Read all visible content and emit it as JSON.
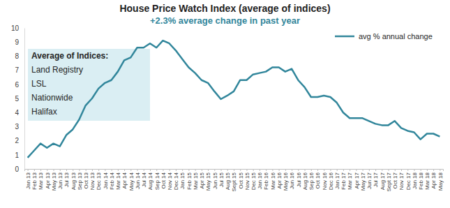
{
  "chart_data": {
    "type": "line",
    "title": "House Price Watch Index (average of indices)",
    "subtitle": "+2.3% average change in past year",
    "categories": [
      "Jan 13",
      "Feb 13",
      "Mar 13",
      "Apr 13",
      "May 13",
      "Jun 13",
      "Jul 13",
      "Aug 13",
      "Sep 13",
      "Oct 13",
      "Nov 13",
      "Dec 13",
      "Jan 14",
      "Feb 14",
      "Mar 14",
      "Apr 14",
      "May 14",
      "Jun 14",
      "Jul 14",
      "Aug 14",
      "Sep 14",
      "Oct 14",
      "Nov 14",
      "Dec 14",
      "Jan 15",
      "Feb 15",
      "Mar 15",
      "Apr 15",
      "May 15",
      "Jun 15",
      "Jul 15",
      "Aug 15",
      "Sept 15",
      "Oct 15",
      "Nov 15",
      "Dec 15",
      "Jan 16",
      "Feb 16",
      "Mar 16",
      "Apr 16",
      "May 16",
      "Jun 16",
      "Jul 16",
      "Aug 16",
      "Sep 16",
      "Oct 16",
      "Nov 16",
      "Dec 16",
      "Jan 17",
      "Feb 17",
      "Mar 17",
      "Apr 17",
      "May 17",
      "Jun 17",
      "Jul 17",
      "Aug 17",
      "Sept 17",
      "Oct 17",
      "Nov 17",
      "Dec 17",
      "Jan 18",
      "Feb 18",
      "Mar 18",
      "Apr 18",
      "May 18"
    ],
    "series": [
      {
        "name": "avg % annual change",
        "color": "#31869b",
        "values": [
          0.8,
          1.3,
          1.8,
          1.5,
          1.8,
          1.6,
          2.4,
          2.8,
          3.5,
          4.5,
          5.0,
          5.7,
          6.1,
          6.3,
          6.9,
          7.7,
          7.9,
          8.6,
          8.6,
          8.9,
          8.6,
          9.1,
          8.9,
          8.4,
          7.8,
          7.2,
          6.8,
          6.3,
          6.1,
          5.5,
          4.95,
          5.2,
          5.5,
          6.3,
          6.3,
          6.7,
          6.8,
          6.9,
          7.2,
          7.2,
          6.9,
          7.1,
          6.3,
          5.8,
          5.1,
          5.1,
          5.2,
          5.1,
          4.7,
          4.0,
          3.6,
          3.6,
          3.6,
          3.4,
          3.2,
          3.1,
          3.1,
          3.4,
          2.9,
          2.7,
          2.6,
          2.1,
          2.5,
          2.5,
          2.3
        ]
      }
    ],
    "ylim": [
      0,
      10
    ],
    "yticks": [
      0,
      1,
      2,
      3,
      4,
      5,
      6,
      7,
      8,
      9,
      10
    ],
    "grid": false,
    "legend": "top-right",
    "annotations": [
      "Average of Indices:",
      "Land Registry",
      "LSL",
      "Nationwide",
      "Halifax"
    ]
  }
}
